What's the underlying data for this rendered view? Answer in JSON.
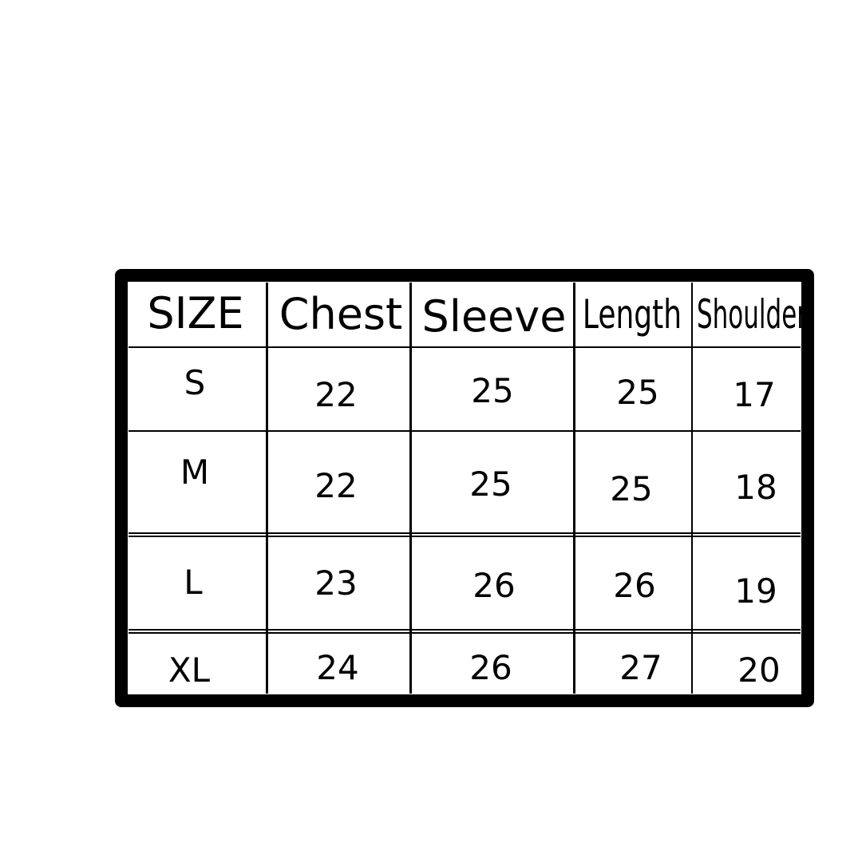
{
  "table": {
    "headers": [
      "SIZE",
      "Chest",
      "Sleeve",
      "Length",
      "Shoulder"
    ],
    "rows": [
      [
        "S",
        "22",
        "25",
        "25",
        "17"
      ],
      [
        "M",
        "22",
        "25",
        "25",
        "18"
      ],
      [
        "L",
        "23",
        "26",
        "26",
        "19"
      ],
      [
        "XL",
        "24",
        "26",
        "27",
        "20"
      ]
    ]
  }
}
